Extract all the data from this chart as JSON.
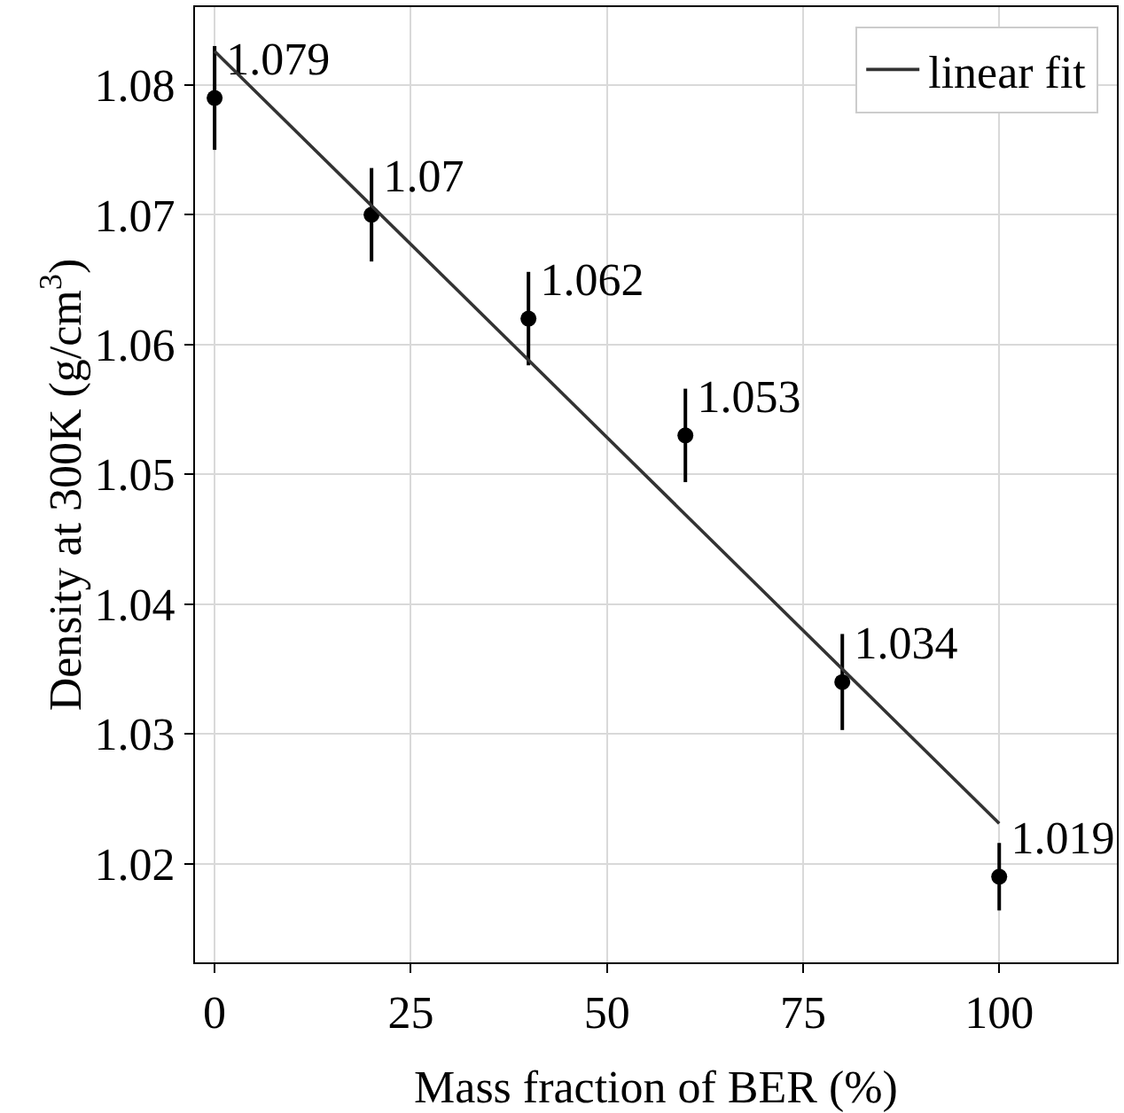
{
  "chart_data": {
    "type": "scatter",
    "xlabel": "Mass fraction of BER (%)",
    "ylabel": "Density at 300K (g/cm$^{3}$)",
    "xlim": [
      -2.5,
      115
    ],
    "ylim": [
      1.0124,
      1.086
    ],
    "xticks": [
      0,
      25,
      50,
      75,
      100
    ],
    "yticks": [
      1.02,
      1.03,
      1.04,
      1.05,
      1.06,
      1.07,
      1.08
    ],
    "grid": true,
    "legend": "top right",
    "series": [
      {
        "marker": "circle",
        "color": "#000000",
        "x": [
          0,
          20,
          40,
          60,
          80,
          100
        ],
        "values": [
          1.079,
          1.07,
          1.062,
          1.053,
          1.034,
          1.019
        ],
        "value_labels": [
          "1.079",
          "1.07",
          "1.062",
          "1.053",
          "1.034",
          "1.019"
        ],
        "errors": [
          0.004,
          0.0036,
          0.0036,
          0.0036,
          0.0037,
          0.0026
        ]
      },
      {
        "type": "line",
        "marker": "none",
        "name": "linear fit",
        "color": "#333333",
        "x": [
          0,
          100
        ],
        "values": [
          1.0826,
          1.0231
        ],
        "line_style": "solid"
      }
    ]
  }
}
